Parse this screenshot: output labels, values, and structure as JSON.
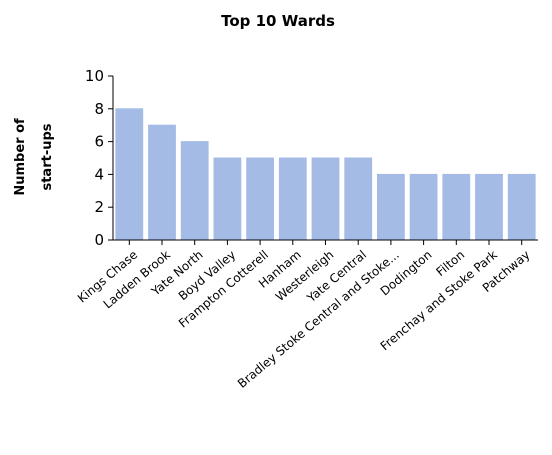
{
  "chart_data": {
    "type": "bar",
    "title": "Top 10 Wards",
    "ylabel_lines": [
      "Number of",
      "start-ups"
    ],
    "xlabel": "",
    "categories": [
      "Kings Chase",
      "Ladden Brook",
      "Yate North",
      "Boyd Valley",
      "Frampton Cotterell",
      "Hanham",
      "Westerleigh",
      "Yate Central",
      "Bradley Stoke Central and Stoke...",
      "Dodington",
      "Filton",
      "Frenchay and Stoke Park",
      "Patchway"
    ],
    "values": [
      8,
      7,
      6,
      5,
      5,
      5,
      5,
      5,
      4,
      4,
      4,
      4,
      4
    ],
    "ylim": [
      0,
      10
    ],
    "yticks": [
      0,
      2,
      4,
      6,
      8,
      10
    ],
    "grid": false,
    "legend": "none",
    "bar_color": "#a4bbe6"
  }
}
